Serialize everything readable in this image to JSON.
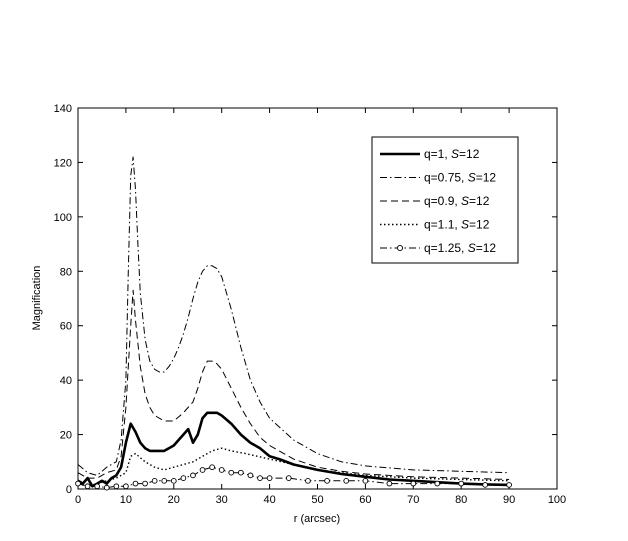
{
  "chart_data": {
    "type": "line",
    "title": "",
    "xlabel": "r (arcsec)",
    "ylabel": "Magnification",
    "xlim": [
      0,
      100
    ],
    "ylim": [
      0,
      140
    ],
    "xticks": [
      0,
      10,
      20,
      30,
      40,
      50,
      60,
      70,
      80,
      90,
      100
    ],
    "yticks": [
      0,
      20,
      40,
      60,
      80,
      100,
      120,
      140
    ],
    "grid": false,
    "legend_position": "top-right",
    "series": [
      {
        "label_main": "q=1, ",
        "label_italic": "S",
        "label_tail": "=12",
        "style": "solid",
        "width": 2.6,
        "color": "#000000",
        "x": [
          0,
          1,
          2,
          3,
          4,
          5,
          6,
          7,
          8,
          9,
          10,
          11,
          12,
          13,
          14,
          15,
          16,
          18,
          20,
          21,
          22,
          23,
          24,
          25,
          26,
          27,
          28,
          29,
          30,
          32,
          34,
          36,
          38,
          40,
          42,
          45,
          50,
          55,
          60,
          65,
          70,
          75,
          80,
          85,
          90
        ],
        "y": [
          3,
          2,
          4,
          1,
          2,
          3,
          2,
          4,
          5,
          8,
          17,
          24,
          21,
          17,
          15,
          14,
          14,
          14,
          16,
          18,
          20,
          22,
          17,
          20,
          26,
          28,
          28,
          28,
          27,
          24,
          20,
          17,
          15,
          12,
          11,
          9,
          7,
          5.5,
          4.5,
          3.5,
          3,
          2.5,
          2,
          1.7,
          1.5
        ]
      },
      {
        "label_main": "q=0.75, ",
        "label_italic": "S",
        "label_tail": "=12",
        "style": "dashdot",
        "width": 1,
        "color": "#000000",
        "x": [
          0,
          2,
          4,
          6,
          8,
          9,
          10,
          10.5,
          11,
          11.5,
          12,
          12.5,
          13,
          14,
          15,
          16,
          17,
          18,
          19,
          20,
          21,
          22,
          23,
          24,
          25,
          26,
          27,
          28,
          29,
          30,
          32,
          34,
          36,
          38,
          40,
          45,
          50,
          55,
          60,
          70,
          80,
          90
        ],
        "y": [
          9,
          6,
          5,
          8,
          10,
          18,
          40,
          80,
          115,
          122,
          110,
          90,
          72,
          55,
          47,
          44,
          43,
          43,
          45,
          48,
          52,
          57,
          63,
          70,
          76,
          80,
          82,
          82,
          81,
          78,
          66,
          52,
          40,
          32,
          26,
          18,
          13,
          10,
          8.5,
          7,
          6.5,
          6
        ]
      },
      {
        "label_main": "q=0.9, ",
        "label_italic": "S",
        "label_tail": "=12",
        "style": "dashed",
        "width": 1,
        "color": "#000000",
        "x": [
          0,
          2,
          4,
          6,
          8,
          9,
          10,
          11,
          11.5,
          12,
          13,
          14,
          15,
          16,
          18,
          20,
          22,
          24,
          25,
          26,
          27,
          28,
          29,
          30,
          32,
          34,
          36,
          38,
          40,
          45,
          50,
          55,
          60,
          70,
          80,
          90
        ],
        "y": [
          6,
          4,
          4,
          6,
          7,
          12,
          30,
          60,
          73,
          62,
          45,
          35,
          30,
          27,
          25,
          25,
          28,
          32,
          37,
          43,
          47,
          47,
          46,
          44,
          37,
          30,
          24,
          19,
          16,
          11,
          8,
          6.5,
          5.5,
          4.5,
          4,
          3.5
        ]
      },
      {
        "label_main": "q=1.1, ",
        "label_italic": "S",
        "label_tail": "=12",
        "style": "dotted",
        "width": 1.4,
        "color": "#000000",
        "x": [
          0,
          2,
          4,
          6,
          8,
          10,
          11,
          12,
          14,
          16,
          18,
          20,
          22,
          24,
          26,
          28,
          30,
          32,
          35,
          40,
          45,
          50,
          55,
          60,
          70,
          80,
          90
        ],
        "y": [
          2,
          1,
          2,
          3,
          4,
          6,
          12,
          13,
          10,
          8,
          7,
          8,
          9,
          10,
          12,
          14,
          15,
          14,
          13,
          11,
          9,
          7,
          6,
          5,
          4,
          3.5,
          3
        ]
      },
      {
        "label_main": "q=1.25, ",
        "label_italic": "S",
        "label_tail": "=12",
        "style": "dashdot-circle",
        "width": 1,
        "color": "#000000",
        "x": [
          0,
          2,
          4,
          6,
          8,
          10,
          12,
          14,
          16,
          18,
          20,
          22,
          24,
          26,
          28,
          30,
          32,
          34,
          36,
          38,
          40,
          44,
          48,
          52,
          56,
          60,
          65,
          70,
          75,
          80,
          85,
          90
        ],
        "y": [
          2,
          1,
          1,
          0.5,
          1,
          1,
          2,
          2,
          3,
          3,
          3,
          4,
          5,
          7,
          8,
          7,
          6,
          6,
          5,
          4,
          4,
          4,
          3,
          3,
          3,
          3,
          2,
          2,
          2,
          2,
          1.5,
          1.5
        ]
      }
    ]
  }
}
